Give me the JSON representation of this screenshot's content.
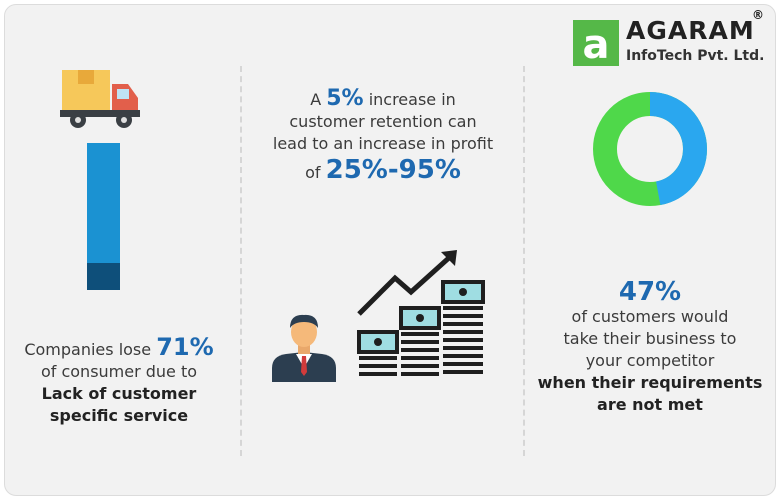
{
  "logo": {
    "mark": "a",
    "title": "AGARAM",
    "registered": "®",
    "subtitle": "InfoTech Pvt. Ltd.",
    "mark_color": "#55b848"
  },
  "col1": {
    "icon": "delivery-truck-icon",
    "level": 0.71,
    "bar_colors": {
      "main": "#1b92d2",
      "shade": "#0e4f7a"
    },
    "line1_prefix": "Companies lose",
    "line1_value": "71%",
    "line2": "of consumer due to",
    "line3": "Lack of customer",
    "line4": "specific service"
  },
  "col2": {
    "line1_prefix": "A",
    "line1_value": "5%",
    "line1_suffix": "increase in",
    "line2": "customer retention can",
    "line3": "lead to an increase in profit",
    "line4_prefix": "of",
    "line4_value": "25%-95%",
    "icons": [
      "businessman-icon",
      "growth-chart-icon"
    ]
  },
  "col3": {
    "donut": {
      "percent": 47,
      "segment_color": "#2aa7ef",
      "rest_color": "#4fd84a"
    },
    "value": "47%",
    "line1": "of customers would",
    "line2": "take their business to",
    "line3": "your competitor",
    "line4": "when their requirements",
    "line5": "are not met"
  },
  "accent_color": "#1e69b0"
}
